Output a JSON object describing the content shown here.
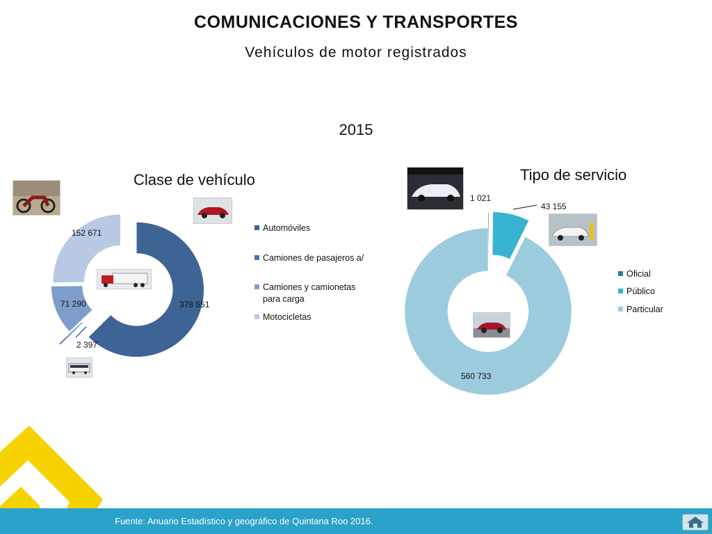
{
  "header": {
    "title": "COMUNICACIONES Y TRANSPORTES",
    "subtitle": "Vehículos de motor registrados",
    "year": "2015"
  },
  "chart_data": [
    {
      "type": "doughnut",
      "title": "Clase de vehículo",
      "categories": [
        "Automóviles",
        "Camiones de pasajeros a/",
        "Camiones y camionetas para carga",
        "Motocicletas"
      ],
      "values": [
        378551,
        2397,
        71290,
        152671
      ],
      "labels": [
        "378 551",
        "2 397",
        "71 290",
        "152 671"
      ],
      "colors": [
        "#3e6496",
        "#4a74a8",
        "#7f9dcb",
        "#b9c8e3"
      ],
      "legend": "right"
    },
    {
      "type": "doughnut",
      "title": "Tipo de servicio",
      "categories": [
        "Oficial",
        "Público",
        "Particular"
      ],
      "values": [
        1021,
        43155,
        560733
      ],
      "labels": [
        "1 021",
        "43 155",
        "560 733"
      ],
      "colors": [
        "#2a7f96",
        "#38b4d2",
        "#9ccbde"
      ],
      "legend": "right"
    }
  ],
  "images": {
    "motorcycle": "motorcycle-photo",
    "red_car": "red-car-photo",
    "truck": "truck-photo",
    "bus": "bus-photo",
    "white_car": "white-car-photo",
    "taxi": "taxi-photo",
    "particular_car": "particular-car-photo"
  },
  "footer": {
    "source": "Fuente: Anuario Estadístico y geográfico de Quintana Roo 2016.",
    "home_icon": "home-icon"
  }
}
